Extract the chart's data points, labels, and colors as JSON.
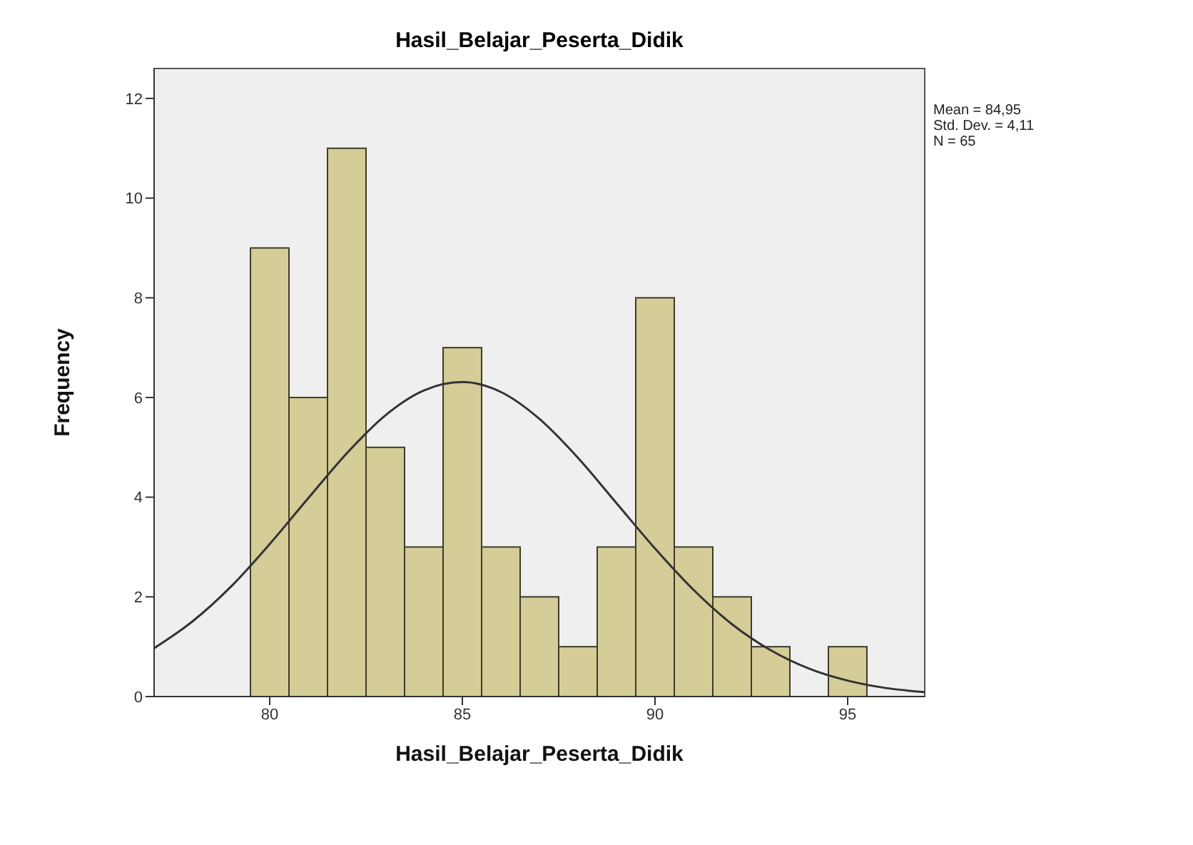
{
  "chart_data": {
    "type": "histogram",
    "title": "Hasil_Belajar_Peserta_Didik",
    "xlabel": "Hasil_Belajar_Peserta_Didik",
    "ylabel": "Frequency",
    "bins": [
      79.5,
      80.5,
      81.5,
      82.5,
      83.5,
      84.5,
      85.5,
      86.5,
      87.5,
      88.5,
      89.5,
      90.5,
      91.5,
      92.5,
      93.5,
      94.5,
      95.5
    ],
    "values": [
      9,
      6,
      11,
      5,
      3,
      7,
      3,
      2,
      1,
      3,
      8,
      3,
      2,
      1,
      0,
      1
    ],
    "color": "#d4cd98",
    "xlim": [
      77,
      97
    ],
    "xticks": [
      80,
      85,
      90,
      95
    ],
    "ylim": [
      0,
      12.6
    ],
    "yticks": [
      0,
      2,
      4,
      6,
      8,
      10,
      12
    ],
    "annotations": [
      "Mean = 84,95",
      "Std. Dev. = 4,11",
      "N = 65"
    ],
    "series": [
      {
        "type": "line",
        "color": "#333333",
        "x": [
          77,
          78,
          79,
          80,
          81,
          82,
          83,
          84,
          85,
          86,
          87,
          88,
          89,
          90,
          91,
          92,
          93,
          94,
          95,
          96,
          97
        ],
        "values": [
          0.97,
          1.51,
          2.21,
          3.06,
          3.98,
          4.88,
          5.64,
          6.14,
          6.31,
          6.11,
          5.57,
          4.79,
          3.88,
          2.97,
          2.14,
          1.45,
          0.93,
          0.56,
          0.32,
          0.17,
          0.09
        ]
      }
    ]
  }
}
